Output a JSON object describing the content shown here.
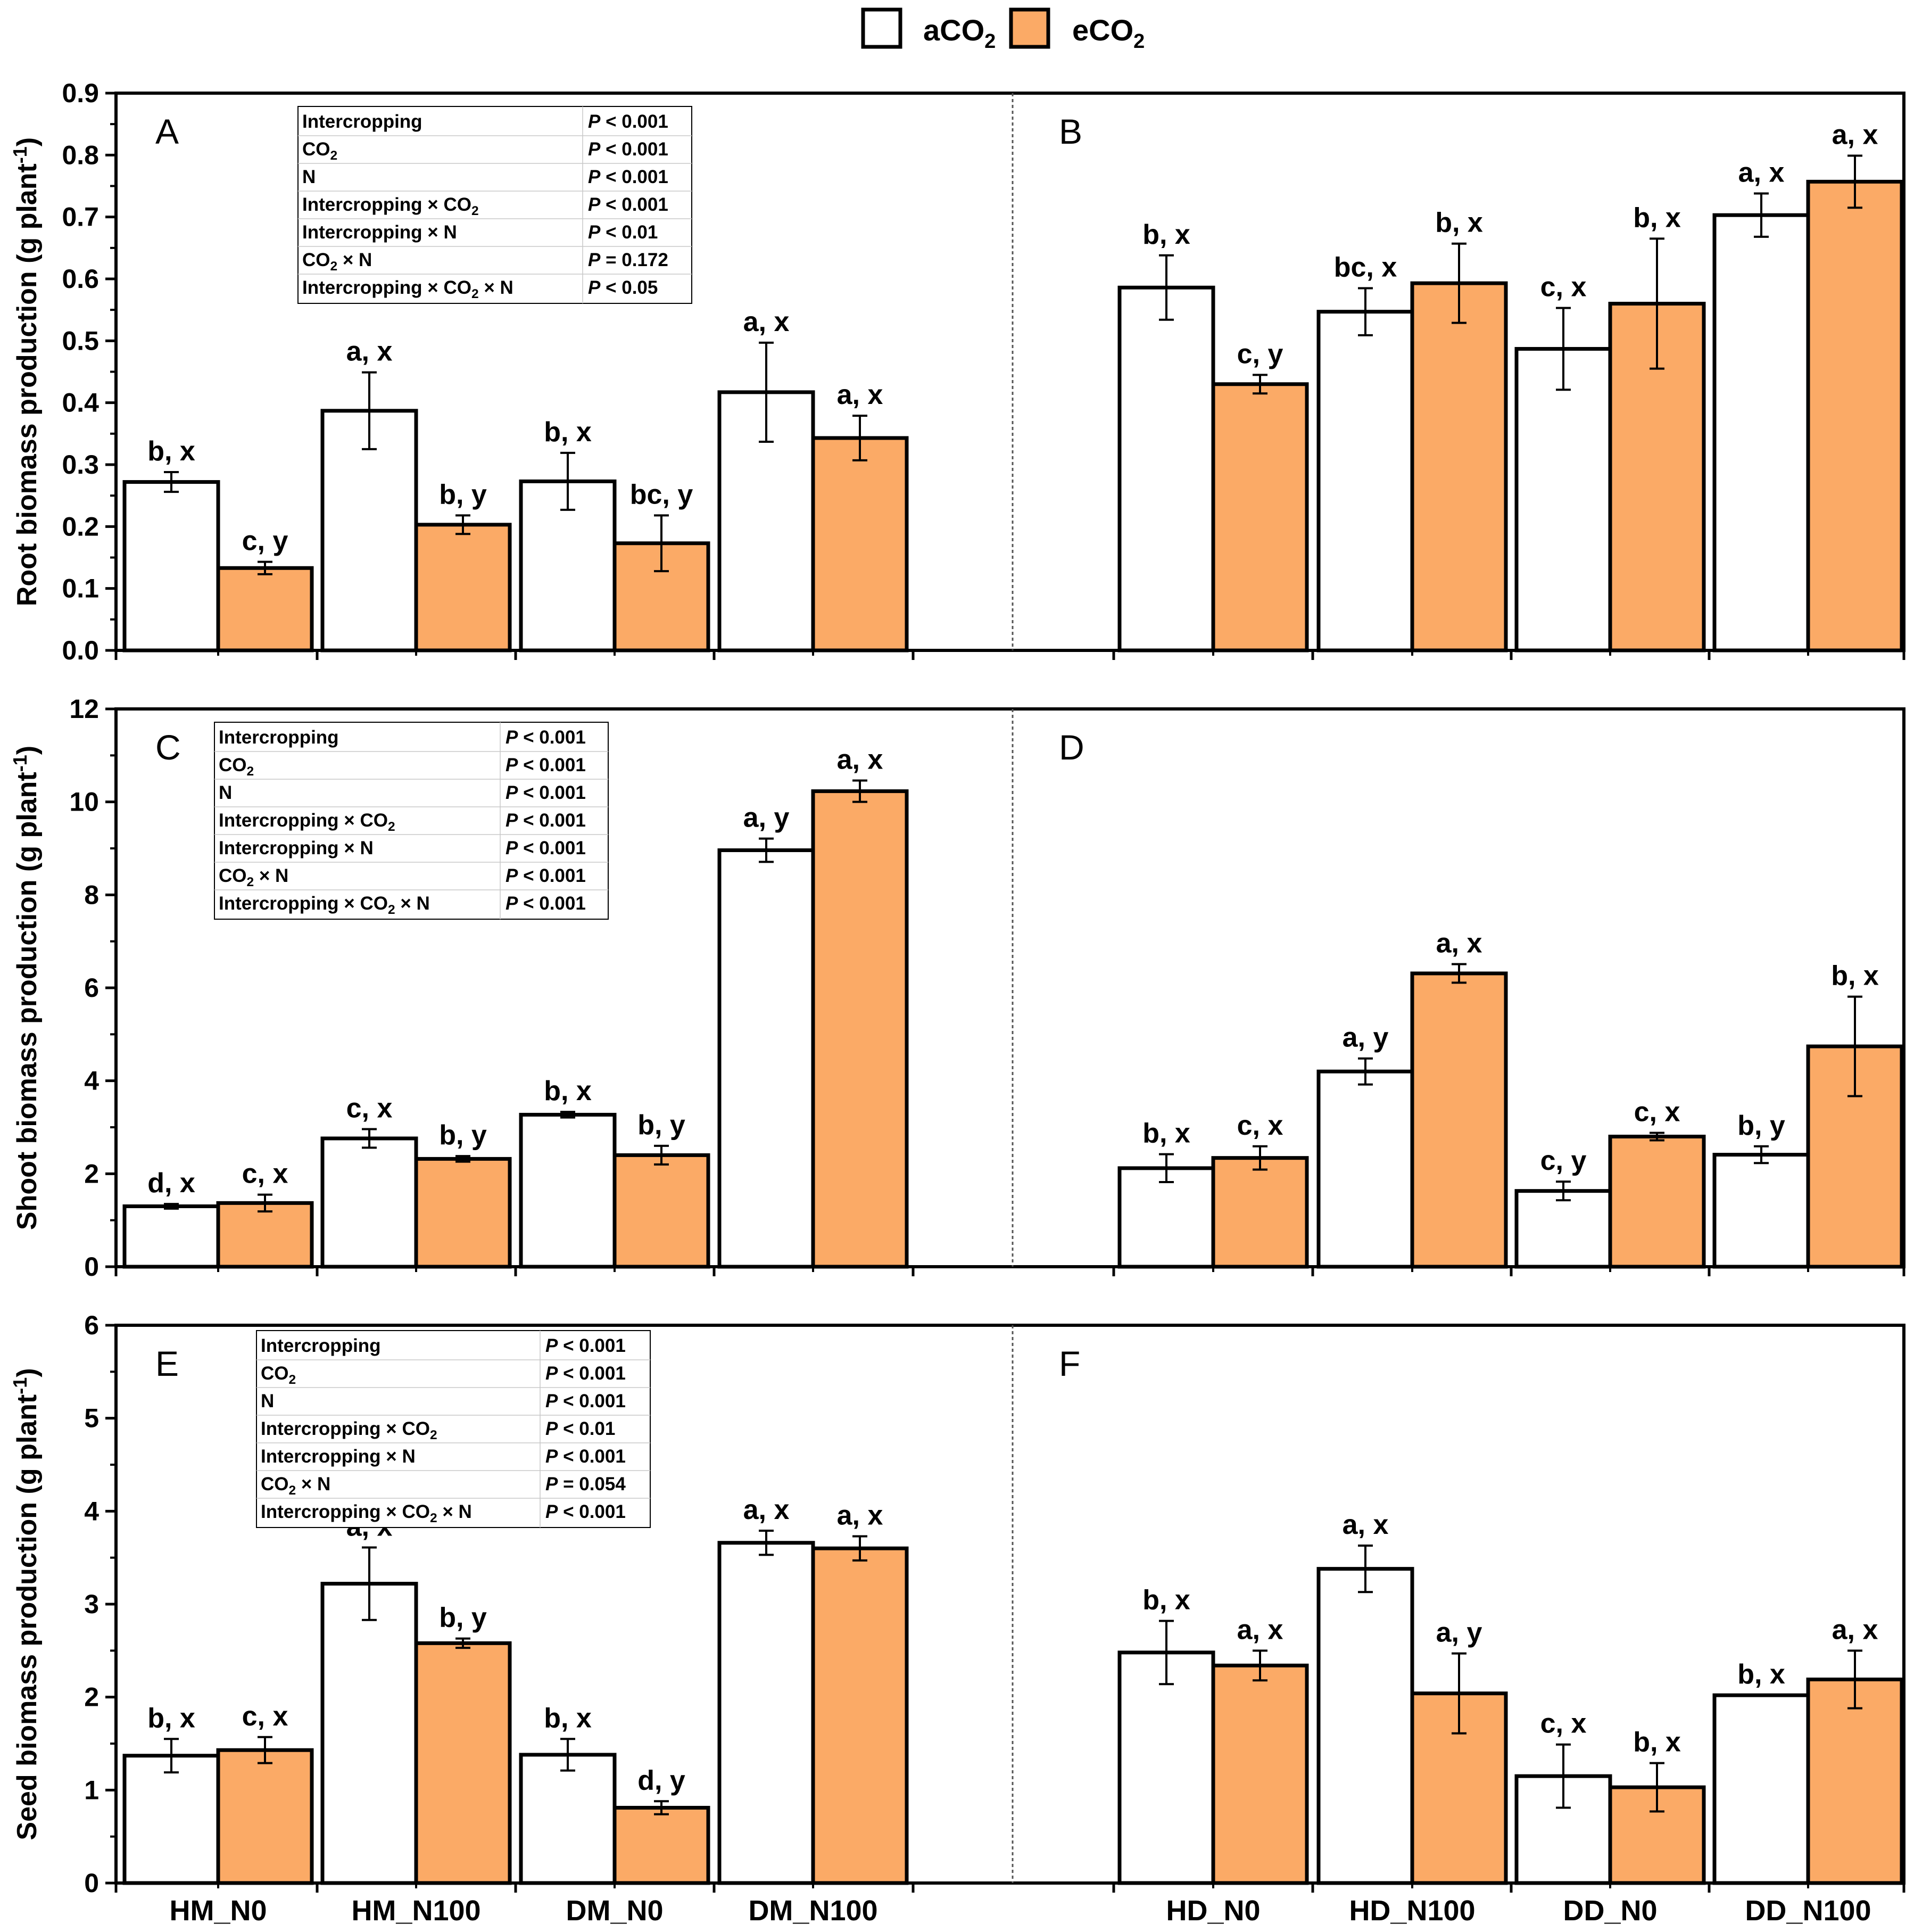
{
  "legend": {
    "items": [
      {
        "label": "aCO",
        "sub": "2",
        "color": "#ffffff"
      },
      {
        "label": "eCO",
        "sub": "2",
        "color": "#fbaa66"
      }
    ]
  },
  "colors": {
    "aCO2": "#ffffff",
    "eCO2": "#fbaa66"
  },
  "x_labels_left": [
    "HM_N0",
    "HM_N100",
    "DM_N0",
    "DM_N100"
  ],
  "x_labels_right": [
    "HD_N0",
    "HD_N100",
    "DD_N0",
    "DD_N100"
  ],
  "chart_data": [
    {
      "type": "bar",
      "ylabel": "Root biomass production (g plant",
      "ylabel_sup": "-1",
      "ylabel_end": ")",
      "ylim": [
        0,
        0.9
      ],
      "yticks": [
        "0.0",
        "0.1",
        "0.2",
        "0.3",
        "0.4",
        "0.5",
        "0.6",
        "0.7",
        "0.8",
        "0.9"
      ],
      "ytick_values": [
        0,
        0.1,
        0.2,
        0.3,
        0.4,
        0.5,
        0.6,
        0.7,
        0.8,
        0.9
      ],
      "panel_labels": [
        "A",
        "B"
      ],
      "stats": [
        [
          "Intercropping",
          "P < 0.001"
        ],
        [
          "CO2",
          "P < 0.001"
        ],
        [
          "N",
          "P < 0.001"
        ],
        [
          "Intercropping × CO2",
          "P < 0.001"
        ],
        [
          "Intercropping × N",
          "P < 0.01"
        ],
        [
          "CO2 × N",
          "P = 0.172"
        ],
        [
          "Intercropping × CO2 × N",
          "P < 0.05"
        ]
      ],
      "series": [
        {
          "name": "aCO2",
          "values": [
            0.272,
            0.387,
            0.273,
            0.417,
            0.586,
            0.547,
            0.487,
            0.703
          ],
          "errors": [
            0.016,
            0.062,
            0.046,
            0.08,
            0.052,
            0.038,
            0.066,
            0.035
          ],
          "labels": [
            "b, x",
            "a, x",
            "b, x",
            "a, x",
            "b, x",
            "bc, x",
            "c, x",
            "a, x"
          ]
        },
        {
          "name": "eCO2",
          "values": [
            0.133,
            0.203,
            0.173,
            0.343,
            0.43,
            0.593,
            0.56,
            0.757
          ],
          "errors": [
            0.01,
            0.015,
            0.045,
            0.036,
            0.015,
            0.064,
            0.105,
            0.042
          ],
          "labels": [
            "c, y",
            "b, y",
            "bc, y",
            "a, x",
            "c, y",
            "b, x",
            "b, x",
            "a, x"
          ]
        }
      ]
    },
    {
      "type": "bar",
      "ylabel": "Shoot biomass production (g plant",
      "ylabel_sup": "-1",
      "ylabel_end": ")",
      "ylim": [
        0,
        12
      ],
      "yticks": [
        "0",
        "2",
        "4",
        "6",
        "8",
        "10",
        "12"
      ],
      "ytick_values": [
        0,
        2,
        4,
        6,
        8,
        10,
        12
      ],
      "panel_labels": [
        "C",
        "D"
      ],
      "stats": [
        [
          "Intercropping",
          "P < 0.001"
        ],
        [
          "CO2",
          "P < 0.001"
        ],
        [
          "N",
          "P < 0.001"
        ],
        [
          "Intercropping × CO2",
          "P < 0.001"
        ],
        [
          "Intercropping × N",
          "P < 0.001"
        ],
        [
          "CO2 × N",
          "P < 0.001"
        ],
        [
          "Intercropping × CO2 × N",
          "P < 0.001"
        ]
      ],
      "series": [
        {
          "name": "aCO2",
          "values": [
            1.3,
            2.76,
            3.27,
            8.96,
            2.12,
            4.2,
            1.63,
            2.41
          ],
          "errors": [
            0.05,
            0.2,
            0.06,
            0.25,
            0.3,
            0.28,
            0.2,
            0.18
          ],
          "labels": [
            "d, x",
            "c, x",
            "b, x",
            "a, y",
            "b, x",
            "a, y",
            "c, y",
            "b, y"
          ]
        },
        {
          "name": "eCO2",
          "values": [
            1.37,
            2.32,
            2.4,
            10.23,
            2.34,
            6.31,
            2.8,
            4.74
          ],
          "errors": [
            0.18,
            0.06,
            0.2,
            0.23,
            0.25,
            0.2,
            0.08,
            1.07
          ],
          "labels": [
            "c, x",
            "b, y",
            "b, y",
            "a, x",
            "c, x",
            "a, x",
            "c, x",
            "b, x"
          ]
        }
      ]
    },
    {
      "type": "bar",
      "ylabel": "Seed biomass production (g plant",
      "ylabel_sup": "-1",
      "ylabel_end": ")",
      "ylim": [
        0,
        6
      ],
      "yticks": [
        "0",
        "1",
        "2",
        "3",
        "4",
        "5",
        "6"
      ],
      "ytick_values": [
        0,
        1,
        2,
        3,
        4,
        5,
        6
      ],
      "panel_labels": [
        "E",
        "F"
      ],
      "stats": [
        [
          "Intercropping",
          "P < 0.001"
        ],
        [
          "CO2",
          "P < 0.001"
        ],
        [
          "N",
          "P < 0.001"
        ],
        [
          "Intercropping × CO2",
          "P < 0.01"
        ],
        [
          "Intercropping × N",
          "P < 0.001"
        ],
        [
          "CO2 × N",
          "P = 0.054"
        ],
        [
          "Intercropping × CO2 × N",
          "P < 0.001"
        ]
      ],
      "series": [
        {
          "name": "aCO2",
          "values": [
            1.37,
            3.22,
            1.38,
            3.66,
            2.48,
            3.38,
            1.15,
            2.02
          ],
          "errors": [
            0.18,
            0.39,
            0.17,
            0.13,
            0.34,
            0.25,
            0.34,
            0.0
          ],
          "labels": [
            "b, x",
            "a, x",
            "b, x",
            "a, x",
            "b, x",
            "a, x",
            "c, x",
            "b, x"
          ]
        },
        {
          "name": "eCO2",
          "values": [
            1.43,
            2.58,
            0.81,
            3.6,
            2.34,
            2.04,
            1.03,
            2.19
          ],
          "errors": [
            0.14,
            0.05,
            0.07,
            0.13,
            0.16,
            0.43,
            0.26,
            0.31
          ],
          "labels": [
            "c, x",
            "b, y",
            "d, y",
            "a, x",
            "a, x",
            "a, y",
            "b, x",
            "a, x"
          ]
        }
      ]
    }
  ]
}
